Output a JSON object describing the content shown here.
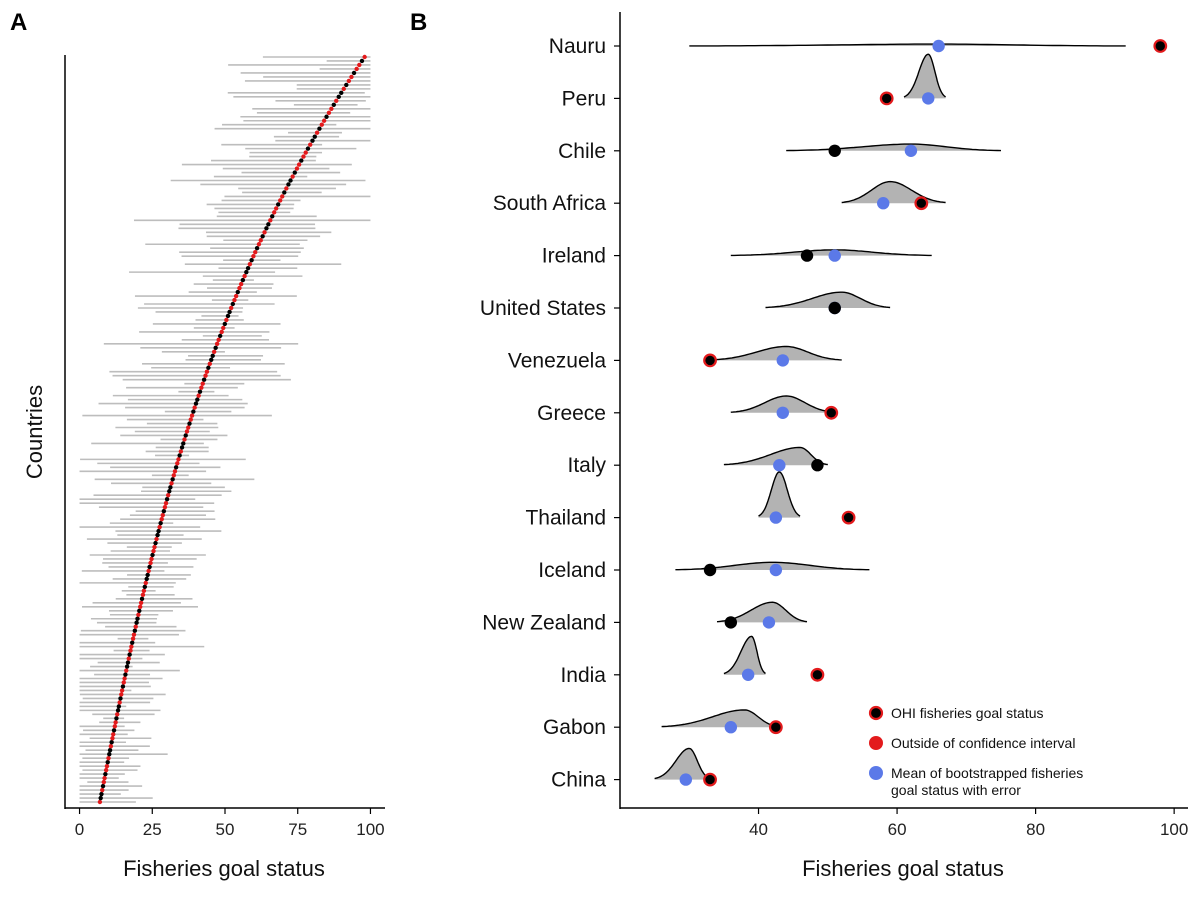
{
  "chart_data": [
    {
      "panel": "A",
      "type": "scatter",
      "xlabel": "Fisheries goal status",
      "ylabel": "Countries",
      "xlim": [
        -5,
        105
      ],
      "xticks": [
        0,
        25,
        50,
        75,
        100
      ],
      "n_countries": 188,
      "status_start": 7,
      "status_end": 98,
      "ci_color": "#bdbdbd",
      "colors": {
        "within": "#000000",
        "outside": "#e31a1c"
      }
    },
    {
      "panel": "B",
      "type": "scatter",
      "xlabel": "Fisheries goal status",
      "xlim": [
        20,
        102
      ],
      "xticks": [
        40,
        60,
        80,
        100
      ],
      "categories": [
        "Nauru",
        "Peru",
        "Chile",
        "South Africa",
        "Ireland",
        "United States",
        "Venezuela",
        "Greece",
        "Italy",
        "Thailand",
        "Iceland",
        "New Zealand",
        "India",
        "Gabon",
        "China"
      ],
      "series": [
        {
          "name": "OHI fisheries goal status",
          "values": [
            98,
            58.5,
            51,
            63.5,
            47,
            51,
            33,
            50.5,
            48.5,
            53,
            33,
            36,
            48.5,
            42.5,
            33
          ]
        },
        {
          "name": "Mean of bootstrapped fisheries goal status with error",
          "values": [
            66,
            64.5,
            62,
            58,
            51,
            51,
            43.5,
            43.5,
            43,
            42.5,
            42.5,
            41.5,
            38.5,
            36,
            29.5
          ]
        }
      ],
      "outside_ci": [
        true,
        true,
        false,
        true,
        false,
        false,
        true,
        true,
        false,
        true,
        false,
        false,
        true,
        true,
        true
      ],
      "distributions": [
        {
          "min": 30,
          "max": 93,
          "mode": 66,
          "peak": 0.04
        },
        {
          "min": 61,
          "max": 67,
          "mode": 64.5,
          "peak": 0.92
        },
        {
          "min": 44,
          "max": 75,
          "mode": 62,
          "peak": 0.14
        },
        {
          "min": 52,
          "max": 67,
          "mode": 59,
          "peak": 0.45
        },
        {
          "min": 36,
          "max": 65,
          "mode": 51,
          "peak": 0.12
        },
        {
          "min": 41,
          "max": 59,
          "mode": 52,
          "peak": 0.33
        },
        {
          "min": 33,
          "max": 52,
          "mode": 44,
          "peak": 0.29
        },
        {
          "min": 36,
          "max": 51,
          "mode": 44,
          "peak": 0.35
        },
        {
          "min": 35,
          "max": 50,
          "mode": 46,
          "peak": 0.37
        },
        {
          "min": 40,
          "max": 46,
          "mode": 43,
          "peak": 0.95
        },
        {
          "min": 28,
          "max": 56,
          "mode": 42,
          "peak": 0.16
        },
        {
          "min": 34,
          "max": 47,
          "mode": 42,
          "peak": 0.42
        },
        {
          "min": 35,
          "max": 41,
          "mode": 39,
          "peak": 0.8
        },
        {
          "min": 26,
          "max": 43,
          "mode": 38,
          "peak": 0.36
        },
        {
          "min": 25,
          "max": 33,
          "mode": 30,
          "peak": 0.65
        }
      ],
      "legend": [
        {
          "label": "OHI fisheries goal status",
          "fill": "#000000",
          "stroke": "#e31a1c"
        },
        {
          "label": "Outside of confidence interval",
          "fill": "#e31a1c",
          "stroke": "#e31a1c"
        },
        {
          "label": "Mean of bootstrapped fisheries",
          "label2": "goal status with error",
          "fill": "#5b79e8",
          "stroke": "#5b79e8"
        }
      ],
      "colors": {
        "ohi": "#000000",
        "outside": "#e31a1c",
        "mean": "#5b79e8",
        "density": "#b3b3b3"
      }
    }
  ]
}
